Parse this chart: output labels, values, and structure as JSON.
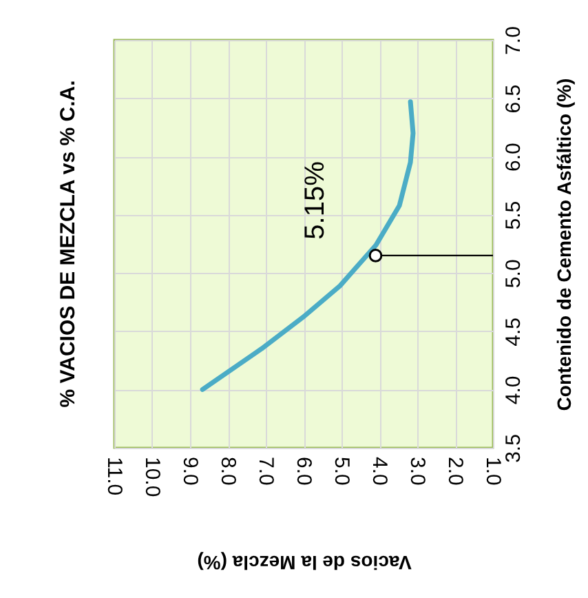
{
  "chart_data": {
    "type": "line",
    "title": "% VACIOS  DE MEZCLA vs  % C.A.",
    "xlabel": "Vacios de la Mezcla (%)",
    "ylabel": "Contenido de Cemento Asfáltico (%)",
    "x": [
      8.67,
      7.11,
      6.02,
      5.04,
      4.09,
      3.47,
      3.18,
      3.11,
      3.18
    ],
    "series": [
      {
        "color": "#4bacc6",
        "values": [
          4.0,
          4.35,
          4.62,
          4.89,
          5.24,
          5.58,
          5.95,
          6.2,
          6.47
        ]
      }
    ],
    "xlim": [
      11.0,
      1.0
    ],
    "xticks": [
      {
        "value": 11,
        "label": "11.0"
      },
      {
        "value": 10,
        "label": "10.0"
      },
      {
        "value": 9,
        "label": "9.0"
      },
      {
        "value": 8,
        "label": "8.0"
      },
      {
        "value": 7,
        "label": "7.0"
      },
      {
        "value": 6,
        "label": "6.0"
      },
      {
        "value": 5,
        "label": "5.0"
      },
      {
        "value": 4,
        "label": "4.0"
      },
      {
        "value": 3,
        "label": "3.0"
      },
      {
        "value": 2,
        "label": "2.0"
      },
      {
        "value": 1,
        "label": "1.0"
      }
    ],
    "ylim": [
      3.5,
      7.0
    ],
    "yticks": [
      {
        "value": 3.5,
        "label": "3.5"
      },
      {
        "value": 4.0,
        "label": "4.0"
      },
      {
        "value": 4.5,
        "label": "4.5"
      },
      {
        "value": 5.0,
        "label": "5.0"
      },
      {
        "value": 5.5,
        "label": "5.5"
      },
      {
        "value": 6.0,
        "label": "6.0"
      },
      {
        "value": 6.5,
        "label": "6.5"
      },
      {
        "value": 7.0,
        "label": "7.0"
      }
    ],
    "annotations": [
      {
        "text": "5.15%",
        "x": 4.1,
        "y": 5.15
      }
    ],
    "grid": true,
    "marker": "none",
    "line_style": "solid"
  }
}
